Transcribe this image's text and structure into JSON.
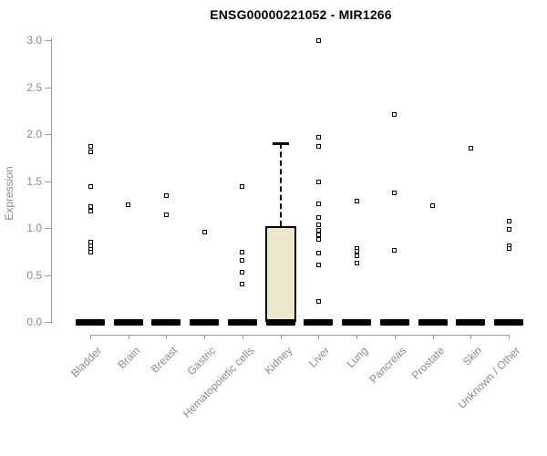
{
  "window": {
    "background": "#ffffff"
  },
  "colors": {
    "box_fill": "#ede8cd",
    "box_border": "#000000",
    "marker_border": "#000000",
    "marker_fill": "#ffffff",
    "axis_line": "#9a9a9a",
    "tick_label": "#8a8a8a",
    "title": "#000000"
  },
  "chart_data": {
    "type": "boxplot",
    "title": "ENSG00000221052 - MIR1266",
    "xlabel": "",
    "ylabel": "Expression",
    "ylim": [
      0,
      3
    ],
    "grid": false,
    "legend": null,
    "ytick_values": [
      0,
      0.5,
      1,
      1.5,
      2,
      2.5,
      3
    ],
    "ytick_labels": [
      "0.0",
      "0.5",
      "1.0",
      "1.5",
      "2.0",
      "2.5",
      "3.0"
    ],
    "categories": [
      "Bladder",
      "Brain",
      "Breast",
      "Gastric",
      "Hematopoietic cells",
      "Kidney",
      "Liver",
      "Lung",
      "Pancreas",
      "Prostate",
      "Skin",
      "Unknown / Other"
    ],
    "boxes": [
      {
        "category": "Bladder",
        "q1": 0,
        "median": 0,
        "q3": 0,
        "whisker_low": 0,
        "whisker_high": 0,
        "outliers": [
          1.87,
          1.81,
          1.44,
          1.23,
          1.18,
          0.85,
          0.81,
          0.77,
          0.74
        ]
      },
      {
        "category": "Brain",
        "q1": 0,
        "median": 0,
        "q3": 0,
        "whisker_low": 0,
        "whisker_high": 0,
        "outliers": [
          1.25
        ]
      },
      {
        "category": "Breast",
        "q1": 0,
        "median": 0,
        "q3": 0,
        "whisker_low": 0,
        "whisker_high": 0,
        "outliers": [
          1.34,
          1.14
        ]
      },
      {
        "category": "Gastric",
        "q1": 0,
        "median": 0,
        "q3": 0,
        "whisker_low": 0,
        "whisker_high": 0,
        "outliers": [
          0.96
        ]
      },
      {
        "category": "Hematopoietic cells",
        "q1": 0,
        "median": 0,
        "q3": 0,
        "whisker_low": 0,
        "whisker_high": 0,
        "outliers": [
          1.44,
          0.74,
          0.66,
          0.53,
          0.4
        ]
      },
      {
        "category": "Kidney",
        "q1": 0,
        "median": 0,
        "q3": 1.02,
        "whisker_low": 0,
        "whisker_high": 1.9,
        "outliers": []
      },
      {
        "category": "Liver",
        "q1": 0,
        "median": 0,
        "q3": 0,
        "whisker_low": 0,
        "whisker_high": 0,
        "outliers": [
          3.0,
          1.97,
          1.87,
          1.49,
          1.26,
          1.11,
          1.03,
          0.98,
          0.93,
          0.88,
          0.73,
          0.61,
          0.22
        ]
      },
      {
        "category": "Lung",
        "q1": 0,
        "median": 0,
        "q3": 0,
        "whisker_low": 0,
        "whisker_high": 0,
        "outliers": [
          1.29,
          0.78,
          0.75,
          0.7,
          0.63
        ]
      },
      {
        "category": "Pancreas",
        "q1": 0,
        "median": 0,
        "q3": 0,
        "whisker_low": 0,
        "whisker_high": 0,
        "outliers": [
          2.21,
          1.37,
          0.76
        ]
      },
      {
        "category": "Prostate",
        "q1": 0,
        "median": 0,
        "q3": 0,
        "whisker_low": 0,
        "whisker_high": 0,
        "outliers": [
          1.24
        ]
      },
      {
        "category": "Skin",
        "q1": 0,
        "median": 0,
        "q3": 0,
        "whisker_low": 0,
        "whisker_high": 0,
        "outliers": [
          1.85
        ]
      },
      {
        "category": "Unknown / Other",
        "q1": 0,
        "median": 0,
        "q3": 0,
        "whisker_low": 0,
        "whisker_high": 0,
        "outliers": [
          1.07,
          0.99,
          0.81,
          0.78
        ]
      }
    ]
  }
}
